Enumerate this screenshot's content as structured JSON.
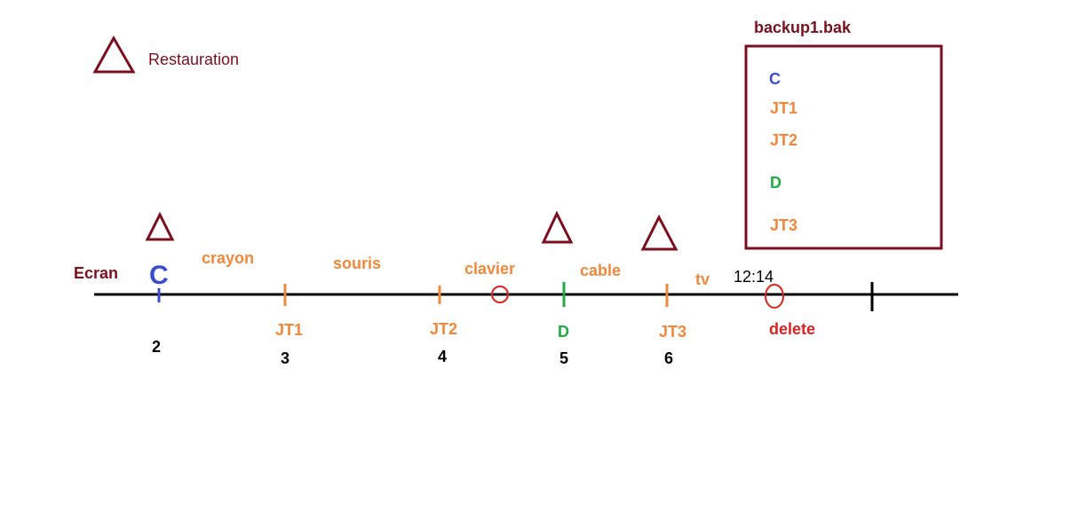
{
  "colors": {
    "maroon": "#7b0f1e",
    "orange": "#f0883a",
    "blue": "#3a4bd0",
    "green": "#22aa44",
    "red": "#e02020",
    "black": "#000000"
  },
  "legend": {
    "symbol": "triangle-icon",
    "label": "Restauration"
  },
  "backup": {
    "title": "backup1.bak",
    "items": [
      "C",
      "JT1",
      "JT2",
      "D",
      "JT3"
    ]
  },
  "timeline": {
    "start_label": "Ecran",
    "c_label": "C",
    "event_labels": [
      "crayon",
      "souris",
      "clavier",
      "cable",
      "tv"
    ],
    "tick_labels": [
      "JT1",
      "JT2",
      "D",
      "JT3"
    ],
    "numbers": [
      "2",
      "3",
      "4",
      "5",
      "6"
    ],
    "time": "12:14",
    "delete_label": "delete"
  }
}
